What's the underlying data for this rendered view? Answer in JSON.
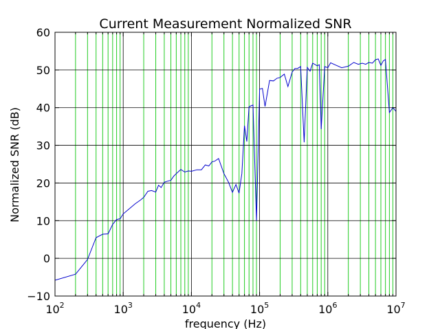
{
  "chart_data": {
    "type": "line",
    "title": "Current Measurement Normalized SNR",
    "xlabel": "frequency (Hz)",
    "ylabel": "Normalized SNR (dB)",
    "xscale": "log",
    "xlim": [
      100,
      10000000
    ],
    "ylim": [
      -10,
      60
    ],
    "grid": true,
    "colors": {
      "line": "#0000cc",
      "major_grid": "#000000",
      "minor_grid": "#22cc22"
    },
    "x_ticks": [
      {
        "base": "10",
        "exp": "2"
      },
      {
        "base": "10",
        "exp": "3"
      },
      {
        "base": "10",
        "exp": "4"
      },
      {
        "base": "10",
        "exp": "5"
      },
      {
        "base": "10",
        "exp": "6"
      },
      {
        "base": "10",
        "exp": "7"
      }
    ],
    "y_ticks": [
      "−10",
      "0",
      "10",
      "20",
      "30",
      "40",
      "50",
      "60"
    ],
    "series": [
      {
        "x": [
          100,
          200,
          300,
          400,
          500,
          600,
          700,
          800,
          900,
          1000,
          1200,
          1500,
          1800,
          2000,
          2300,
          2600,
          3000,
          3300,
          3600,
          4000,
          4500,
          5000,
          5500,
          6000,
          7000,
          8000,
          9000,
          10000,
          12000,
          14000,
          16000,
          18000,
          20000,
          22000,
          25000,
          30000,
          35000,
          40000,
          45000,
          50000,
          55000,
          60000,
          65000,
          70000,
          75000,
          80000,
          90000,
          100000,
          110000,
          120000,
          140000,
          160000,
          180000,
          200000,
          230000,
          260000,
          300000,
          330000,
          360000,
          400000,
          450000,
          500000,
          550000,
          600000,
          700000,
          750000,
          800000,
          900000,
          1000000,
          1100000,
          1300000,
          1600000,
          2000000,
          2400000,
          2800000,
          3200000,
          3600000,
          4000000,
          4500000,
          5000000,
          5500000,
          6000000,
          6500000,
          7000000,
          8000000,
          9000000,
          10000000
        ],
        "y": [
          -5.8,
          -4.2,
          -0.3,
          5.5,
          6.4,
          6.5,
          9.0,
          10.3,
          10.5,
          11.8,
          13.0,
          14.5,
          15.5,
          16.2,
          17.8,
          18.0,
          17.6,
          19.4,
          18.8,
          20.2,
          20.5,
          20.7,
          21.8,
          22.5,
          23.6,
          22.9,
          23.2,
          23.1,
          23.5,
          23.5,
          24.8,
          24.5,
          25.6,
          25.8,
          26.5,
          22.5,
          20.2,
          17.5,
          19.6,
          17.3,
          22.5,
          35.2,
          31.0,
          40.2,
          40.5,
          40.7,
          10.0,
          44.9,
          45.1,
          40.3,
          47.2,
          47.1,
          47.8,
          48.0,
          48.9,
          45.6,
          49.4,
          50.4,
          50.4,
          50.9,
          30.8,
          50.7,
          49.7,
          51.8,
          51.1,
          51.4,
          34.3,
          50.9,
          50.6,
          51.9,
          51.3,
          50.6,
          51.0,
          52.0,
          51.5,
          51.8,
          51.5,
          52.0,
          51.8,
          52.7,
          52.9,
          51.2,
          52.4,
          52.8,
          38.7,
          40.0,
          39.0
        ]
      }
    ]
  }
}
